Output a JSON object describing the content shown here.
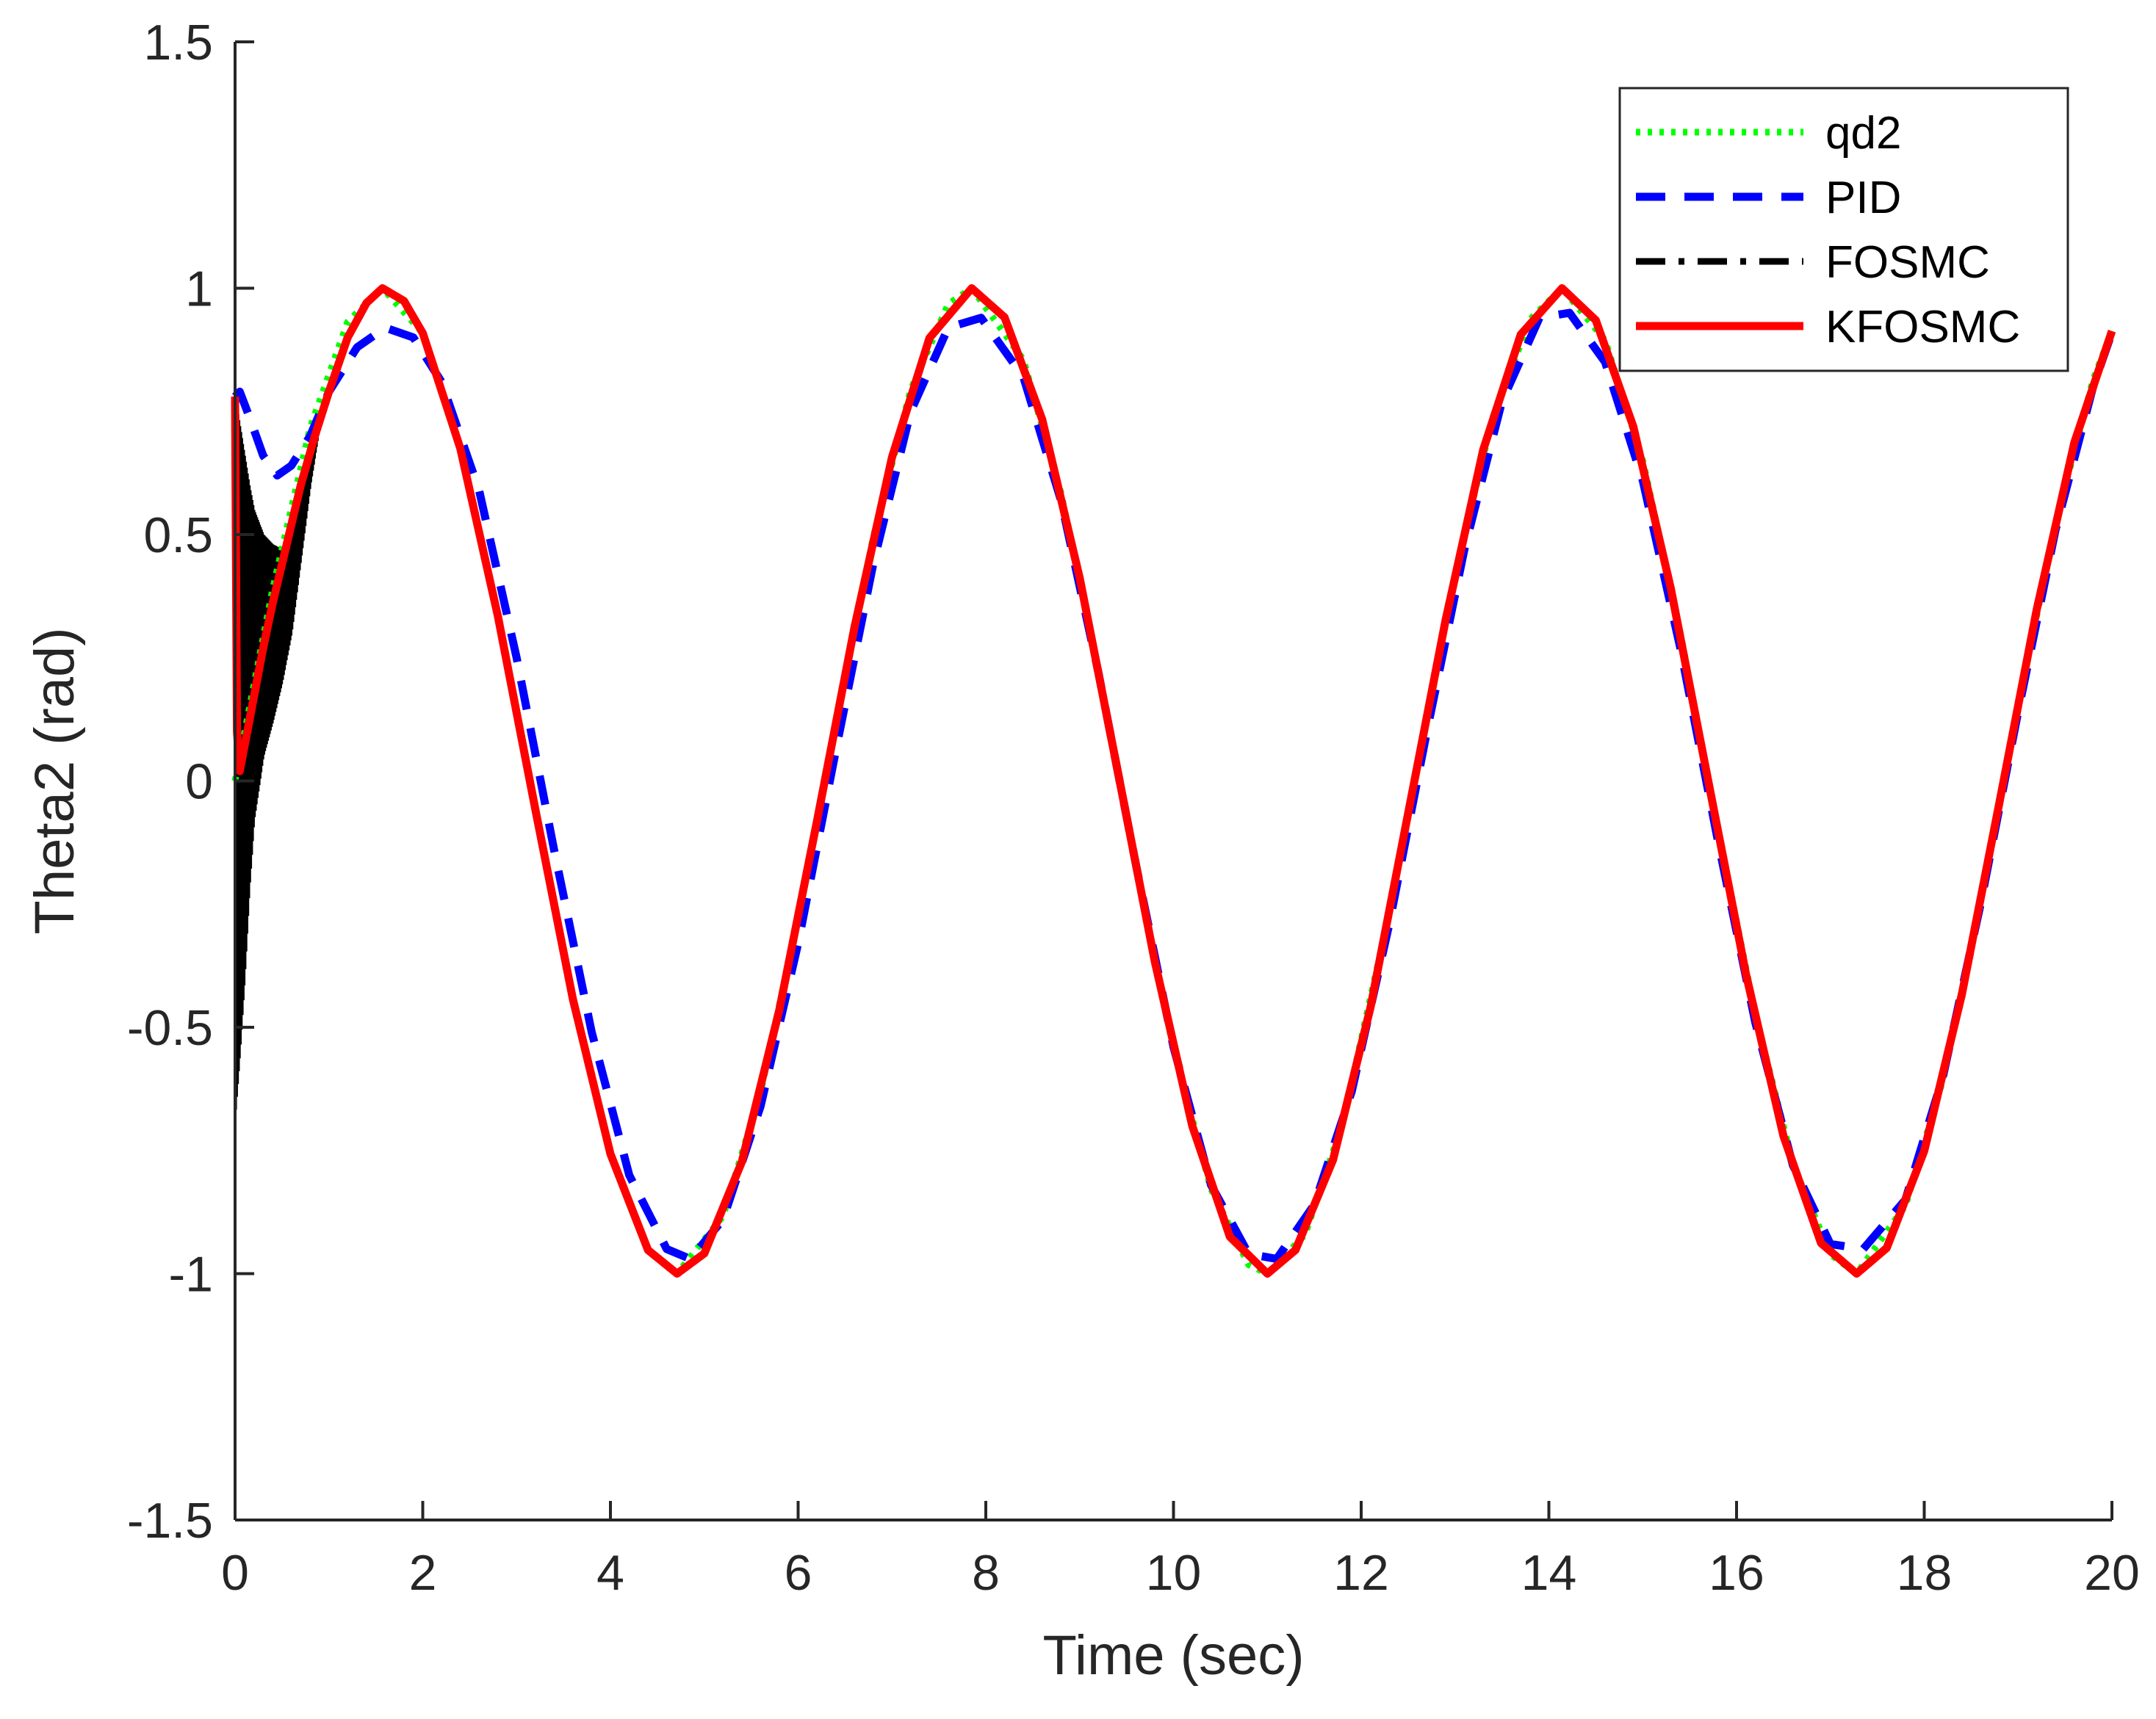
{
  "chart_data": {
    "type": "line",
    "title": "",
    "xlabel": "Time (sec)",
    "ylabel": "Theta2 (rad)",
    "xlim": [
      0,
      20
    ],
    "ylim": [
      -1.5,
      1.5
    ],
    "grid": false,
    "legend_position": "top-right",
    "x_ticks": [
      0,
      2,
      4,
      6,
      8,
      10,
      12,
      14,
      16,
      18,
      20
    ],
    "y_ticks": [
      -1.5,
      -1,
      -0.5,
      0,
      0.5,
      1,
      1.5
    ],
    "x_tick_labels": [
      "0",
      "2",
      "4",
      "6",
      "8",
      "10",
      "12",
      "14",
      "16",
      "18",
      "20"
    ],
    "y_tick_labels": [
      "-1.5",
      "-1",
      "-0.5",
      "0",
      "0.5",
      "1",
      "1.5"
    ],
    "series": [
      {
        "name": "qd2",
        "style": "dotted",
        "color": "#00ff00",
        "description": "desired trajectory sin(t)",
        "x": [
          0,
          0.4,
          0.8,
          1.2,
          1.57,
          2.0,
          2.4,
          2.8,
          3.2,
          3.6,
          4.0,
          4.4,
          4.71,
          5.2,
          5.6,
          6.0,
          6.4,
          6.8,
          7.2,
          7.6,
          7.85,
          8.4,
          8.8,
          9.2,
          9.6,
          10.0,
          10.4,
          10.8,
          11.0,
          11.4,
          11.8,
          12.2,
          12.6,
          13.0,
          13.4,
          13.8,
          14.14,
          14.6,
          15.0,
          15.4,
          15.8,
          16.2,
          16.6,
          17.0,
          17.28,
          17.8,
          18.2,
          18.6,
          19.0,
          19.4,
          19.8,
          20.0
        ],
        "y": [
          0.0,
          0.389,
          0.717,
          0.932,
          1.0,
          0.909,
          0.675,
          0.335,
          -0.058,
          -0.443,
          -0.757,
          -0.952,
          -1.0,
          -0.883,
          -0.631,
          -0.279,
          0.117,
          0.494,
          0.794,
          0.968,
          1.0,
          0.855,
          0.585,
          0.223,
          -0.175,
          -0.544,
          -0.828,
          -0.982,
          -1.0,
          -0.921,
          -0.696,
          -0.354,
          0.034,
          0.42,
          0.737,
          0.937,
          1.0,
          0.894,
          0.65,
          0.301,
          -0.096,
          -0.474,
          -0.777,
          -0.961,
          -1.0,
          -0.862,
          -0.606,
          -0.246,
          0.15,
          0.524,
          0.814,
          0.913
        ]
      },
      {
        "name": "PID",
        "style": "dashed",
        "color": "#0000ff",
        "x": [
          0,
          0.05,
          0.15,
          0.3,
          0.45,
          0.6,
          0.8,
          1.0,
          1.3,
          1.6,
          1.9,
          2.2,
          2.6,
          3.0,
          3.4,
          3.8,
          4.2,
          4.6,
          4.85,
          5.2,
          5.6,
          6.0,
          6.4,
          6.8,
          7.2,
          7.6,
          7.95,
          8.4,
          8.8,
          9.2,
          9.6,
          10.0,
          10.4,
          10.8,
          11.1,
          11.5,
          11.9,
          12.3,
          12.7,
          13.1,
          13.5,
          13.9,
          14.22,
          14.6,
          15.0,
          15.4,
          15.8,
          16.2,
          16.6,
          17.0,
          17.35,
          17.8,
          18.2,
          18.6,
          19.0,
          19.4,
          19.8,
          20.0
        ],
        "y": [
          0.78,
          0.79,
          0.74,
          0.66,
          0.62,
          0.64,
          0.7,
          0.79,
          0.88,
          0.92,
          0.9,
          0.81,
          0.59,
          0.25,
          -0.14,
          -0.51,
          -0.8,
          -0.95,
          -0.97,
          -0.89,
          -0.66,
          -0.33,
          0.06,
          0.44,
          0.75,
          0.92,
          0.94,
          0.82,
          0.57,
          0.22,
          -0.17,
          -0.54,
          -0.82,
          -0.96,
          -0.97,
          -0.86,
          -0.63,
          -0.29,
          0.1,
          0.47,
          0.77,
          0.94,
          0.95,
          0.85,
          0.61,
          0.27,
          -0.12,
          -0.49,
          -0.78,
          -0.94,
          -0.95,
          -0.85,
          -0.6,
          -0.25,
          0.14,
          0.51,
          0.8,
          0.91
        ]
      },
      {
        "name": "FOSMC",
        "style": "dash-dot",
        "color": "#000000",
        "description": "high-frequency chattering between t=0 and t~1 with envelope from about -0.68 to 0.78, then follows the desired trajectory",
        "envelope_x": [
          0,
          0.05,
          0.1,
          0.15,
          0.2,
          0.3,
          0.4,
          0.5,
          0.6,
          0.7,
          0.8,
          0.9,
          1.0
        ],
        "envelope_upper": [
          0.78,
          0.72,
          0.66,
          0.6,
          0.55,
          0.5,
          0.48,
          0.47,
          0.5,
          0.58,
          0.66,
          0.73,
          0.8
        ],
        "envelope_lower": [
          -0.68,
          -0.55,
          -0.4,
          -0.22,
          -0.08,
          0.05,
          0.12,
          0.2,
          0.3,
          0.45,
          0.6,
          0.72,
          0.8
        ]
      },
      {
        "name": "KFOSMC",
        "style": "solid",
        "color": "#ff0000",
        "x": [
          0,
          0.02,
          0.05,
          0.1,
          0.2,
          0.3,
          0.4,
          0.5,
          0.6,
          0.7,
          0.85,
          1.0,
          1.2,
          1.4,
          1.57,
          1.8,
          2.0,
          2.4,
          2.8,
          3.2,
          3.6,
          4.0,
          4.4,
          4.71,
          5.0,
          5.4,
          5.8,
          6.2,
          6.6,
          7.0,
          7.4,
          7.85,
          8.2,
          8.6,
          9.0,
          9.4,
          9.8,
          10.2,
          10.6,
          11.0,
          11.3,
          11.7,
          12.1,
          12.5,
          12.9,
          13.3,
          13.7,
          14.14,
          14.5,
          14.9,
          15.3,
          15.7,
          16.1,
          16.5,
          16.9,
          17.28,
          17.6,
          18.0,
          18.4,
          18.8,
          19.2,
          19.6,
          20.0
        ],
        "y": [
          0.78,
          0.1,
          0.02,
          0.07,
          0.17,
          0.27,
          0.36,
          0.44,
          0.52,
          0.6,
          0.7,
          0.79,
          0.9,
          0.97,
          1.0,
          0.974,
          0.909,
          0.675,
          0.335,
          -0.058,
          -0.443,
          -0.757,
          -0.952,
          -1.0,
          -0.959,
          -0.773,
          -0.465,
          -0.083,
          0.311,
          0.657,
          0.899,
          1.0,
          0.941,
          0.734,
          0.412,
          0.025,
          -0.366,
          -0.7,
          -0.925,
          -1.0,
          -0.952,
          -0.769,
          -0.459,
          -0.066,
          0.327,
          0.672,
          0.906,
          1.0,
          0.935,
          0.719,
          0.39,
          -0.002,
          -0.392,
          -0.721,
          -0.938,
          -1.0,
          -0.948,
          -0.751,
          -0.434,
          -0.045,
          0.349,
          0.687,
          0.913
        ]
      }
    ]
  }
}
